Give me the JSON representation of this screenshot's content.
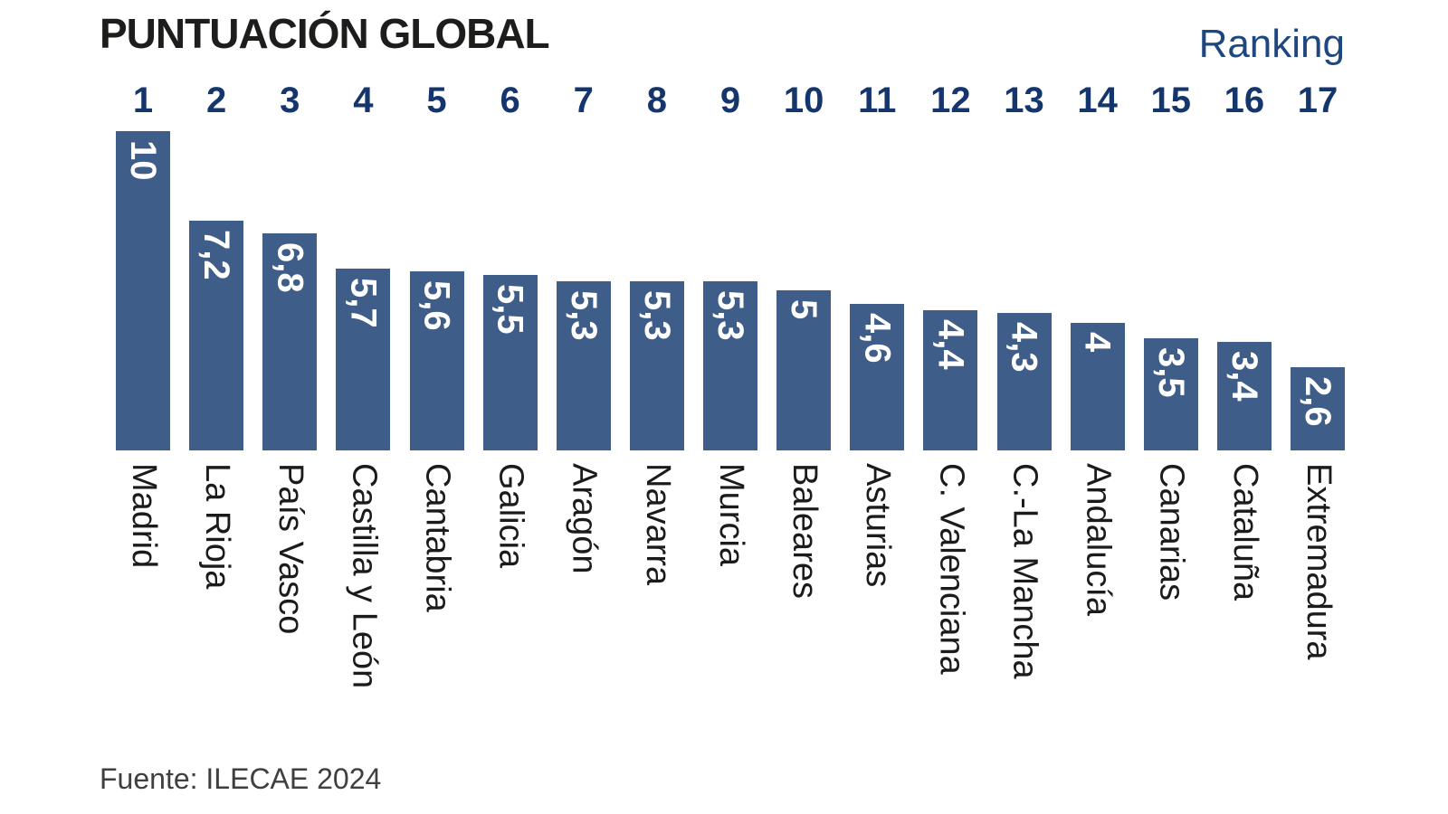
{
  "header": {
    "title": "PUNTUACIÓN GLOBAL",
    "ranking_label": "Ranking"
  },
  "footer": {
    "source": "Fuente: ILECAE 2024"
  },
  "colors": {
    "bar": "#3e5d88",
    "rank_number": "#15356d",
    "ranking_label": "#1e4680",
    "value_text": "#ffffff",
    "title_text": "#1d1d1b",
    "category_text": "#1b1b1b",
    "source_text": "#3f3f3f"
  },
  "chart_data": {
    "type": "bar",
    "title": "PUNTUACIÓN GLOBAL",
    "legend": "Ranking",
    "orientation": "vertical",
    "categories": [
      "Madrid",
      "La Rioja",
      "País Vasco",
      "Castilla y León",
      "Cantabria",
      "Galicia",
      "Aragón",
      "Navarra",
      "Murcia",
      "Baleares",
      "Asturias",
      "C. Valenciana",
      "C.-La Mancha",
      "Andalucía",
      "Canarias",
      "Cataluña",
      "Extremadura"
    ],
    "ranks": [
      "1",
      "2",
      "3",
      "4",
      "5",
      "6",
      "7",
      "8",
      "9",
      "10",
      "11",
      "12",
      "13",
      "14",
      "15",
      "16",
      "17"
    ],
    "values": [
      10,
      7.2,
      6.8,
      5.7,
      5.6,
      5.5,
      5.3,
      5.3,
      5.3,
      5,
      4.6,
      4.4,
      4.3,
      4,
      3.5,
      3.4,
      2.6
    ],
    "value_labels": [
      "10",
      "7,2",
      "6,8",
      "5,7",
      "5,6",
      "5,5",
      "5,3",
      "5,3",
      "5,3",
      "5",
      "4,6",
      "4,4",
      "4,3",
      "4",
      "3,5",
      "3,4",
      "2,6"
    ],
    "ylim": [
      0,
      10
    ],
    "grid": false,
    "source": "Fuente: ILECAE 2024"
  }
}
